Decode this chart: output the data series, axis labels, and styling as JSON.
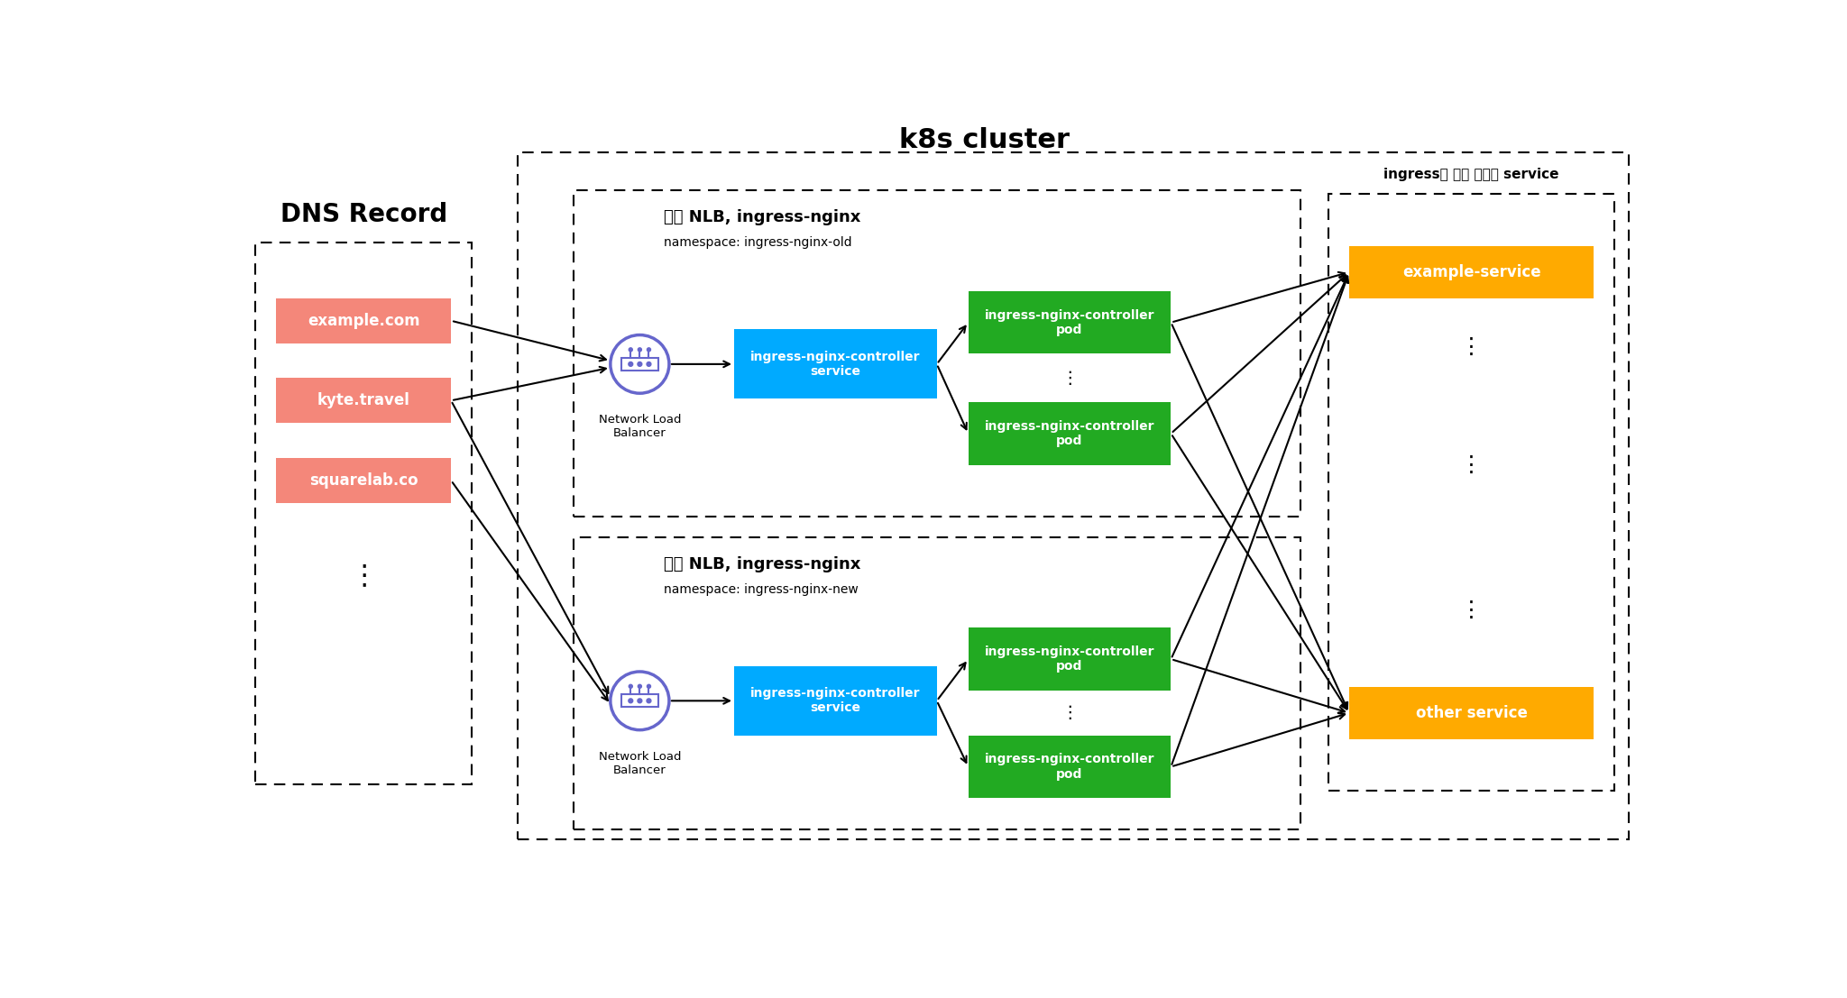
{
  "title": "k8s cluster",
  "bg_color": "#ffffff",
  "dns_title": "DNS Record",
  "dns_records": [
    "example.com",
    "kyte.travel",
    "squarelab.co"
  ],
  "dns_color": "#F4877A",
  "dns_text_color": "#ffffff",
  "old_section_title": "기존 NLB, ingress-nginx",
  "old_namespace": "namespace: ingress-nginx-old",
  "new_section_title": "신규 NLB, ingress-nginx",
  "new_namespace": "namespace: ingress-nginx-new",
  "nlb_label": "Network Load\nBalancer",
  "nlb_color": "#6666CC",
  "service_label": "ingress-nginx-controller\nservice",
  "service_color": "#00AAFF",
  "pod_label": "ingress-nginx-controller\npod",
  "pod_color": "#22AA22",
  "services_section_title": "ingress를 통해 연결된 service",
  "example_service_label": "example-service",
  "other_service_label": "other service",
  "service_box_color": "#FFAA00",
  "service_text_color": "#ffffff"
}
